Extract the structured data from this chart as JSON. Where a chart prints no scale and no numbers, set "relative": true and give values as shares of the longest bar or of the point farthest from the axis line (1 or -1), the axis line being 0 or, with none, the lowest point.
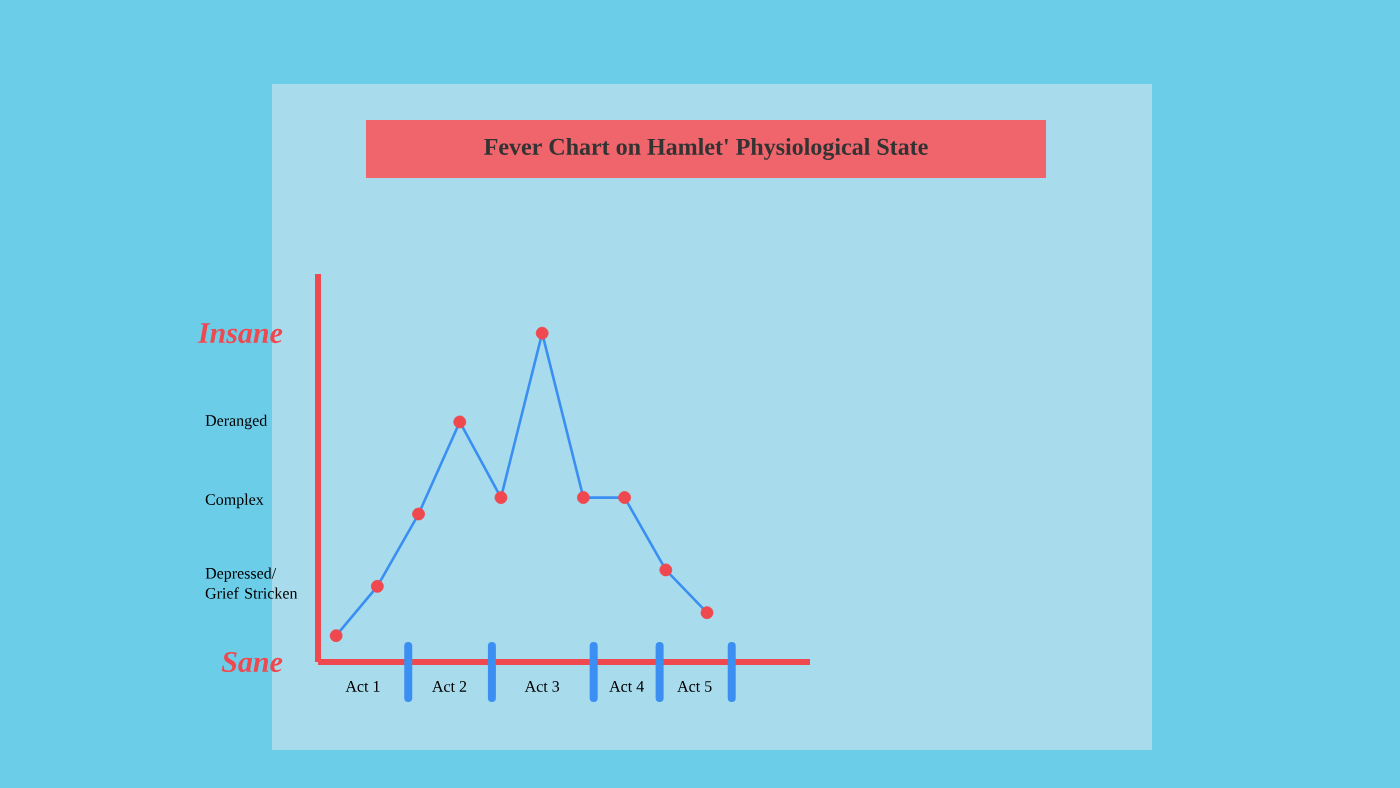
{
  "chart_data": {
    "type": "line",
    "title": "Fever Chart on Hamlet' Physiological State",
    "relative": true,
    "categories": [
      null,
      null,
      null,
      null,
      null,
      null,
      null,
      null,
      null,
      null
    ],
    "annotations": [
      "Insane",
      "Deranged",
      "Complex",
      "Depressed/ Grief Stricken",
      "Sane",
      "Act 1",
      "Act 2",
      "Act 3",
      "Act 4",
      "Act 5"
    ],
    "marker": "circle",
    "line_style": "solid",
    "series": [
      {
        "color": "#3b8ff2",
        "colors": [
          "#f0484f",
          "#f0484f",
          "#f0484f",
          "#f0484f",
          "#f0484f",
          "#f0484f",
          "#f0484f",
          "#f0484f",
          "#f0484f",
          "#f0484f"
        ],
        "values": [
          0.08,
          0.23,
          0.45,
          0.73,
          0.5,
          1,
          0.5,
          0.5,
          0.28,
          0.15
        ]
      }
    ]
  }
}
